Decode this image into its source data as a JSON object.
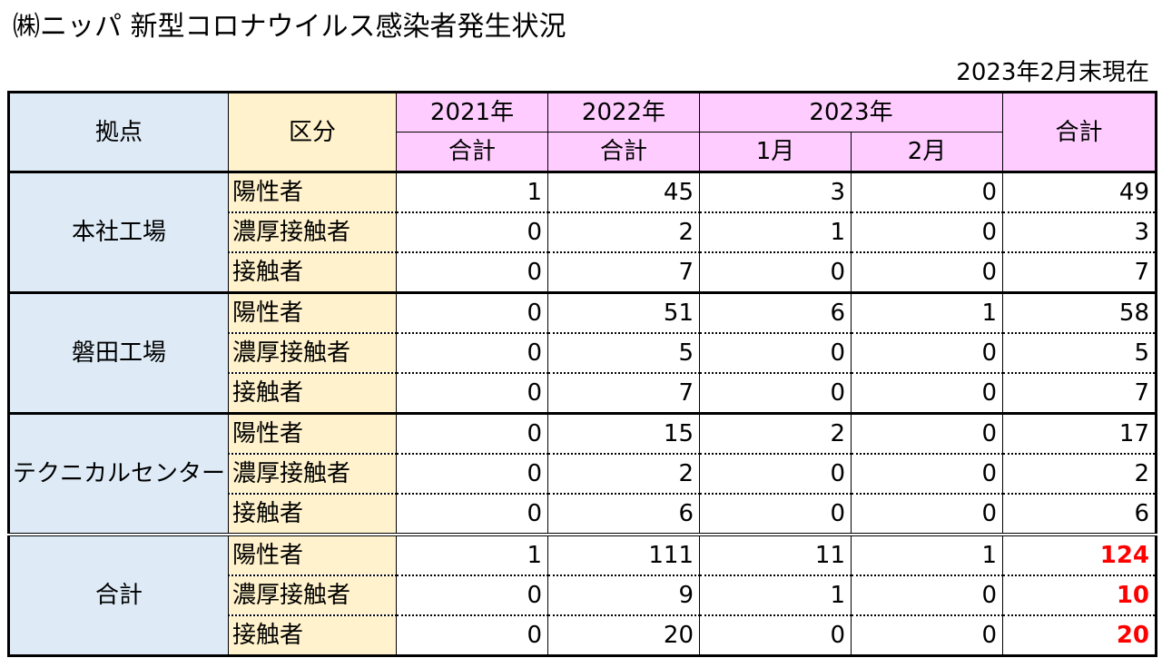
{
  "title": "㈱ニッパ 新型コロナウイルス感染者発生状況",
  "as_of": "2023年2月末現在",
  "header": {
    "location": "拠点",
    "category": "区分",
    "y2021": "2021年",
    "y2022": "2022年",
    "y2023": "2023年",
    "total": "合計",
    "sub_total": "合計",
    "jan": "1月",
    "feb": "2月"
  },
  "sections": [
    {
      "name": "本社工場",
      "rows": [
        {
          "category": "陽性者",
          "y2021": "1",
          "y2022": "45",
          "jan": "3",
          "feb": "0",
          "total": "49"
        },
        {
          "category": "濃厚接触者",
          "y2021": "0",
          "y2022": "2",
          "jan": "1",
          "feb": "0",
          "total": "3"
        },
        {
          "category": "接触者",
          "y2021": "0",
          "y2022": "7",
          "jan": "0",
          "feb": "0",
          "total": "7"
        }
      ]
    },
    {
      "name": "磐田工場",
      "rows": [
        {
          "category": "陽性者",
          "y2021": "0",
          "y2022": "51",
          "jan": "6",
          "feb": "1",
          "total": "58"
        },
        {
          "category": "濃厚接触者",
          "y2021": "0",
          "y2022": "5",
          "jan": "0",
          "feb": "0",
          "total": "5"
        },
        {
          "category": "接触者",
          "y2021": "0",
          "y2022": "7",
          "jan": "0",
          "feb": "0",
          "total": "7"
        }
      ]
    },
    {
      "name": "テクニカルセンター",
      "rows": [
        {
          "category": "陽性者",
          "y2021": "0",
          "y2022": "15",
          "jan": "2",
          "feb": "0",
          "total": "17"
        },
        {
          "category": "濃厚接触者",
          "y2021": "0",
          "y2022": "2",
          "jan": "0",
          "feb": "0",
          "total": "2"
        },
        {
          "category": "接触者",
          "y2021": "0",
          "y2022": "6",
          "jan": "0",
          "feb": "0",
          "total": "6"
        }
      ]
    },
    {
      "name": "合計",
      "rows": [
        {
          "category": "陽性者",
          "y2021": "1",
          "y2022": "111",
          "jan": "11",
          "feb": "1",
          "total": "124"
        },
        {
          "category": "濃厚接触者",
          "y2021": "0",
          "y2022": "9",
          "jan": "1",
          "feb": "0",
          "total": "10"
        },
        {
          "category": "接触者",
          "y2021": "0",
          "y2022": "20",
          "jan": "0",
          "feb": "0",
          "total": "20"
        }
      ]
    }
  ],
  "colors": {
    "location_bg": "#deebf7",
    "category_bg": "#fff2cc",
    "year_header_bg": "#ffccff",
    "highlight_total": "#ff0000"
  }
}
